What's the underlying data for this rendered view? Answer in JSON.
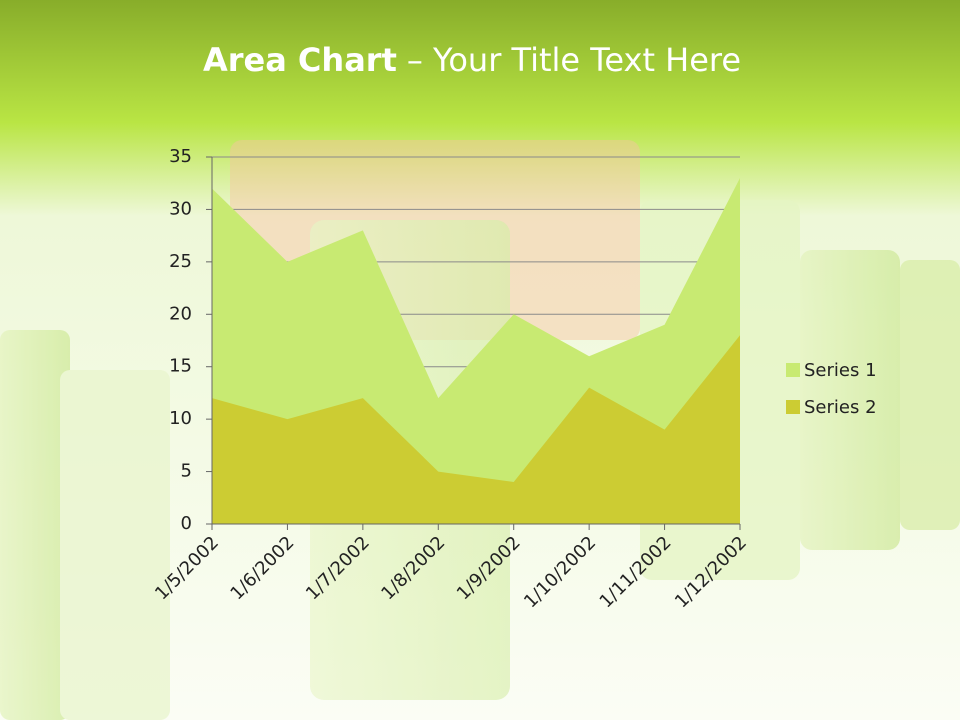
{
  "chart_data": {
    "type": "area",
    "title_parts": [
      "Area Chart",
      "– Your Title Text Here"
    ],
    "categories": [
      "1/5/2002",
      "1/6/2002",
      "1/7/2002",
      "1/8/2002",
      "1/9/2002",
      "1/10/2002",
      "1/11/2002",
      "1/12/2002"
    ],
    "series": [
      {
        "name": "Series 1",
        "color": "#c8ea72",
        "values": [
          32,
          25,
          28,
          12,
          20,
          16,
          19,
          33
        ]
      },
      {
        "name": "Series 2",
        "color": "#cccc33",
        "values": [
          12,
          10,
          12,
          5,
          4,
          13,
          9,
          18
        ]
      }
    ],
    "ylim": [
      0,
      35
    ],
    "yticks": [
      0,
      5,
      10,
      15,
      20,
      25,
      30,
      35
    ],
    "grid": true,
    "legend": "right"
  }
}
